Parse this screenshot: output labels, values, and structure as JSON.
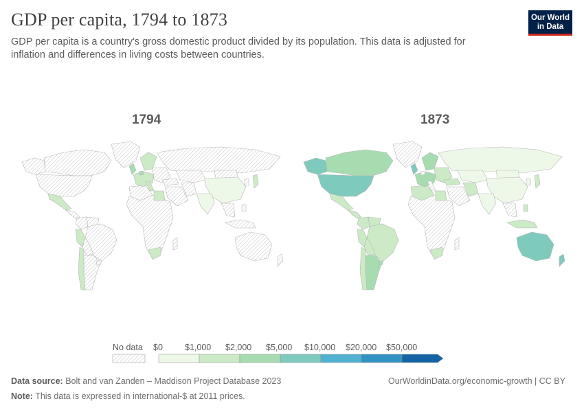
{
  "header": {
    "title": "GDP per capita, 1794 to 1873",
    "subtitle": "GDP per capita is a country's gross domestic product divided by its population. This data is adjusted for inflation and differences in living costs between countries."
  },
  "logo": {
    "line1": "Our World",
    "line2": "in Data"
  },
  "chart_data": {
    "type": "choropleth",
    "title": "GDP per capita, 1794 to 1873",
    "unit": "international-$ at 2011 prices",
    "maps": [
      {
        "year": "1794",
        "regions": [
          {
            "name": "Mexico",
            "bin": 1
          },
          {
            "name": "Peru",
            "bin": 1
          },
          {
            "name": "Chile",
            "bin": 1
          },
          {
            "name": "United Kingdom",
            "bin": 2
          },
          {
            "name": "Netherlands",
            "bin": 2
          },
          {
            "name": "Western Europe",
            "bin": 1
          },
          {
            "name": "Scandinavia",
            "bin": 1
          },
          {
            "name": "Italy",
            "bin": 1
          },
          {
            "name": "Egypt",
            "bin": 1
          },
          {
            "name": "China",
            "bin": 0
          },
          {
            "name": "India",
            "bin": 0
          },
          {
            "name": "Japan",
            "bin": 1
          },
          {
            "name": "South Africa",
            "bin": 1
          }
        ]
      },
      {
        "year": "1873",
        "regions": [
          {
            "name": "Canada",
            "bin": 2
          },
          {
            "name": "United States",
            "bin": 3
          },
          {
            "name": "Alaska",
            "bin": 3
          },
          {
            "name": "Mexico",
            "bin": 1
          },
          {
            "name": "Central America",
            "bin": 1
          },
          {
            "name": "Colombia",
            "bin": 1
          },
          {
            "name": "Venezuela",
            "bin": 1
          },
          {
            "name": "Brazil",
            "bin": 1
          },
          {
            "name": "Peru",
            "bin": 1
          },
          {
            "name": "Bolivia",
            "bin": 1
          },
          {
            "name": "Argentina",
            "bin": 2
          },
          {
            "name": "Uruguay",
            "bin": 2
          },
          {
            "name": "Chile",
            "bin": 1
          },
          {
            "name": "Greenland",
            "bin": -1
          },
          {
            "name": "United Kingdom",
            "bin": 3
          },
          {
            "name": "Western Europe",
            "bin": 2
          },
          {
            "name": "Scandinavia",
            "bin": 2
          },
          {
            "name": "Eastern Europe",
            "bin": 1
          },
          {
            "name": "Russia",
            "bin": 0
          },
          {
            "name": "Algeria",
            "bin": 1
          },
          {
            "name": "Egypt",
            "bin": 1
          },
          {
            "name": "Turkey",
            "bin": 1
          },
          {
            "name": "Iran",
            "bin": 1
          },
          {
            "name": "Central Asia",
            "bin": 0
          },
          {
            "name": "China",
            "bin": 0
          },
          {
            "name": "Mongolia",
            "bin": 0
          },
          {
            "name": "Korea",
            "bin": 0
          },
          {
            "name": "Japan",
            "bin": 1
          },
          {
            "name": "India",
            "bin": 0
          },
          {
            "name": "Indonesia",
            "bin": 1
          },
          {
            "name": "Philippines",
            "bin": 1
          },
          {
            "name": "Australia",
            "bin": 3
          },
          {
            "name": "New Zealand",
            "bin": 3
          },
          {
            "name": "South Africa",
            "bin": 1
          },
          {
            "name": "Madagascar",
            "bin": -1
          }
        ]
      }
    ],
    "legend": {
      "no_data_label": "No data",
      "bins": [
        "$0",
        "$1,000",
        "$2,000",
        "$5,000",
        "$10,000",
        "$20,000",
        "$50,000"
      ],
      "colors": [
        "#eef8e9",
        "#cbeac5",
        "#a6dcb0",
        "#7ecabd",
        "#52b0d1",
        "#3193c3",
        "#1464a5"
      ]
    }
  },
  "colors": {
    "no_data_hatch": "#d0d0d0",
    "border": "#b8b8b8"
  },
  "footer": {
    "source_label": "Data source:",
    "source_value": "Bolt and van Zanden – Maddison Project Database 2023",
    "note_label": "Note:",
    "note_value": "This data is expressed in international-$ at 2011 prices.",
    "link": "OurWorldinData.org/economic-growth | CC BY"
  }
}
